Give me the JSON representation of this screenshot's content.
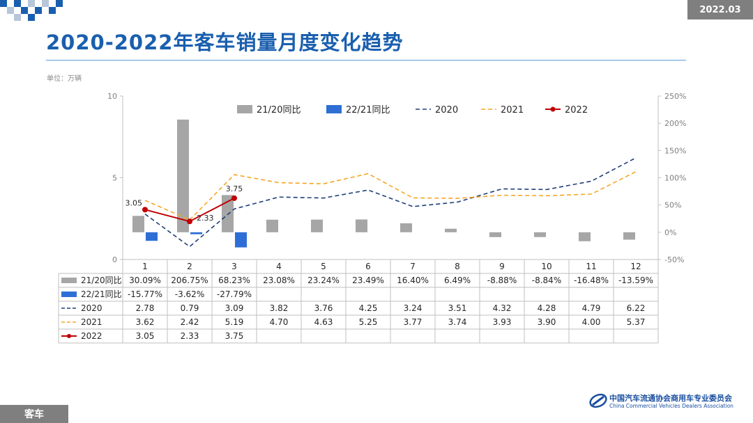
{
  "header": {
    "date": "2022.03",
    "title": "2020-2022年客车销量月度变化趋势",
    "unit": "单位：万辆"
  },
  "footer": {
    "section": "客车",
    "org_cn": "中国汽车流通协会商用车专业委员会",
    "org_en": "China Commercial Vehicles Dealers Association"
  },
  "colors": {
    "title": "#1a5fae",
    "bar_2120": "#a6a6a6",
    "bar_2221": "#2e6fd6",
    "line_2020": "#1f3d7a",
    "line_2021": "#f5a623",
    "line_2022": "#c00000"
  },
  "chart_data": {
    "type": "bar+line",
    "categories": [
      "1",
      "2",
      "3",
      "4",
      "5",
      "6",
      "7",
      "8",
      "9",
      "10",
      "11",
      "12"
    ],
    "y_left": {
      "range": [
        0,
        10
      ],
      "ticks": [
        "0",
        "5",
        "10"
      ]
    },
    "y_right": {
      "range": [
        -50,
        250
      ],
      "ticks": [
        "-50%",
        "0%",
        "50%",
        "100%",
        "150%",
        "200%",
        "250%"
      ]
    },
    "legend_position": "top",
    "bar_series": [
      {
        "name": "21/20同比",
        "axis": "right",
        "values": [
          30.09,
          206.75,
          68.23,
          23.08,
          23.24,
          23.49,
          16.4,
          6.49,
          -8.88,
          -8.84,
          -16.48,
          -13.59
        ],
        "labels": [
          "30.09%",
          "206.75%",
          "68.23%",
          "23.08%",
          "23.24%",
          "23.49%",
          "16.40%",
          "6.49%",
          "-8.88%",
          "-8.84%",
          "-16.48%",
          "-13.59%"
        ]
      },
      {
        "name": "22/21同比",
        "axis": "right",
        "values": [
          -15.77,
          -3.62,
          -27.79,
          null,
          null,
          null,
          null,
          null,
          null,
          null,
          null,
          null
        ],
        "labels": [
          "-15.77%",
          "-3.62%",
          "-27.79%",
          "",
          "",
          "",
          "",
          "",
          "",
          "",
          "",
          ""
        ]
      }
    ],
    "line_series": [
      {
        "name": "2020",
        "axis": "left",
        "style": "dashed",
        "values": [
          2.78,
          0.79,
          3.09,
          3.82,
          3.76,
          4.25,
          3.24,
          3.51,
          4.32,
          4.28,
          4.79,
          6.22
        ],
        "labels": [
          "2.78",
          "0.79",
          "3.09",
          "3.82",
          "3.76",
          "4.25",
          "3.24",
          "3.51",
          "4.32",
          "4.28",
          "4.79",
          "6.22"
        ]
      },
      {
        "name": "2021",
        "axis": "left",
        "style": "dashed",
        "values": [
          3.62,
          2.42,
          5.19,
          4.7,
          4.63,
          5.25,
          3.77,
          3.74,
          3.93,
          3.9,
          4.0,
          5.37
        ],
        "labels": [
          "3.62",
          "2.42",
          "5.19",
          "4.70",
          "4.63",
          "5.25",
          "3.77",
          "3.74",
          "3.93",
          "3.90",
          "4.00",
          "5.37"
        ]
      },
      {
        "name": "2022",
        "axis": "left",
        "style": "solid-marker",
        "values": [
          3.05,
          2.33,
          3.75,
          null,
          null,
          null,
          null,
          null,
          null,
          null,
          null,
          null
        ],
        "labels": [
          "3.05",
          "2.33",
          "3.75",
          "",
          "",
          "",
          "",
          "",
          "",
          "",
          "",
          ""
        ]
      }
    ]
  }
}
